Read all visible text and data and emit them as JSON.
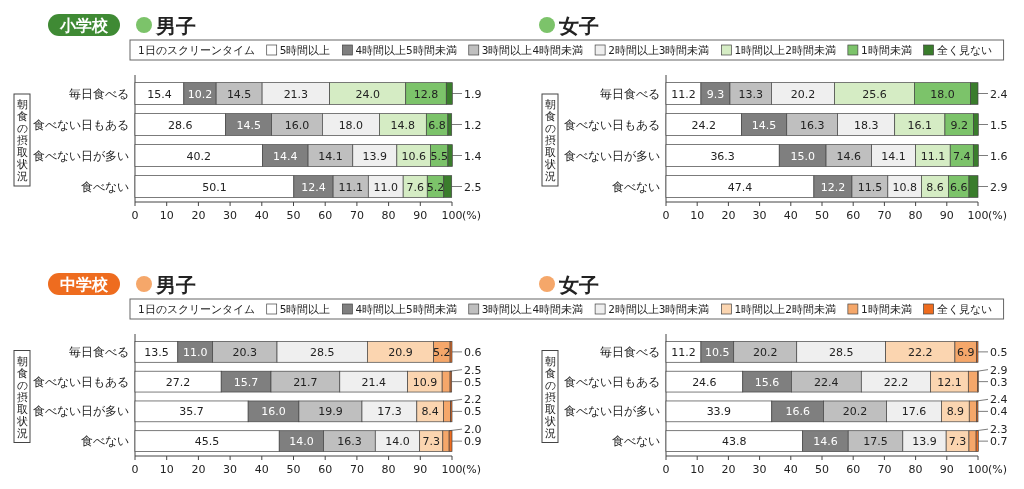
{
  "chart_data": [
    {
      "type": "bar",
      "orientation": "horizontal",
      "stacked": true,
      "subtitle": "小学校",
      "title": "男子",
      "ylabel": "朝食の摂取状況",
      "xlabel": "(%)",
      "legend_title": "1日のスクリーンタイム",
      "legend": "top",
      "grid": false,
      "categories": [
        "毎日食べる",
        "食べない日もある",
        "食べない日が多い",
        "食べない"
      ],
      "xlim": [
        0,
        100
      ],
      "xticks": [
        0,
        10,
        20,
        30,
        40,
        50,
        60,
        70,
        80,
        90,
        100
      ],
      "series": [
        {
          "name": "5時間以上",
          "color": "#ffffff",
          "values": [
            15.4,
            28.6,
            40.2,
            50.1
          ],
          "value_labels": [
            "15.4",
            "28.6",
            "40.2",
            "50.1"
          ]
        },
        {
          "name": "4時間以上5時間未満",
          "color": "#7f7f7f",
          "values": [
            10.2,
            14.5,
            14.4,
            12.4
          ],
          "value_labels": [
            "10.2",
            "14.5",
            "14.4",
            "12.4"
          ]
        },
        {
          "name": "3時間以上4時間未満",
          "color": "#bfbfbf",
          "values": [
            14.5,
            16.0,
            14.1,
            11.1
          ],
          "value_labels": [
            "14.5",
            "16.0",
            "14.1",
            "11.1"
          ]
        },
        {
          "name": "2時間以上3時間未満",
          "color": "#efefef",
          "values": [
            21.3,
            18.0,
            13.9,
            11.0
          ],
          "value_labels": [
            "21.3",
            "18.0",
            "13.9",
            "11.0"
          ]
        },
        {
          "name": "1時間以上2時間未満",
          "color": "#d5ecc4",
          "values": [
            24.0,
            14.8,
            10.6,
            7.6
          ],
          "value_labels": [
            "24.0",
            "14.8",
            "10.6",
            "7.6"
          ]
        },
        {
          "name": "1時間未満",
          "color": "#7cc36a",
          "values": [
            12.8,
            6.8,
            5.5,
            5.2
          ],
          "value_labels": [
            "12.8",
            "6.8",
            "5.5",
            "5.2"
          ]
        },
        {
          "name": "全く見ない",
          "color": "#3a7d2c",
          "values": [
            1.9,
            1.2,
            1.4,
            2.5
          ],
          "value_labels": [
            "1.9",
            "1.2",
            "1.4",
            "2.5"
          ]
        }
      ]
    },
    {
      "type": "bar",
      "orientation": "horizontal",
      "stacked": true,
      "title": "女子",
      "ylabel": "朝食の摂取状況",
      "xlabel": "(%)",
      "grid": false,
      "categories": [
        "毎日食べる",
        "食べない日もある",
        "食べない日が多い",
        "食べない"
      ],
      "xlim": [
        0,
        100
      ],
      "xticks": [
        0,
        10,
        20,
        30,
        40,
        50,
        60,
        70,
        80,
        90,
        100
      ],
      "series": [
        {
          "color": "#ffffff",
          "values": [
            11.2,
            24.2,
            36.3,
            47.4
          ],
          "value_labels": [
            "11.2",
            "24.2",
            "36.3",
            "47.4"
          ]
        },
        {
          "color": "#7f7f7f",
          "values": [
            9.3,
            14.5,
            15.0,
            12.2
          ],
          "value_labels": [
            "9.3",
            "14.5",
            "15.0",
            "12.2"
          ]
        },
        {
          "color": "#bfbfbf",
          "values": [
            13.3,
            16.3,
            14.6,
            11.5
          ],
          "value_labels": [
            "13.3",
            "16.3",
            "14.6",
            "11.5"
          ]
        },
        {
          "color": "#efefef",
          "values": [
            20.2,
            18.3,
            14.1,
            10.8
          ],
          "value_labels": [
            "20.2",
            "18.3",
            "14.1",
            "10.8"
          ]
        },
        {
          "color": "#d5ecc4",
          "values": [
            25.6,
            16.1,
            11.1,
            8.6
          ],
          "value_labels": [
            "25.6",
            "16.1",
            "11.1",
            "8.6"
          ]
        },
        {
          "color": "#7cc36a",
          "values": [
            18.0,
            9.2,
            7.4,
            6.6
          ],
          "value_labels": [
            "18.0",
            "9.2",
            "7.4",
            "6.6"
          ]
        },
        {
          "color": "#3a7d2c",
          "values": [
            2.4,
            1.5,
            1.6,
            2.9
          ],
          "value_labels": [
            "2.4",
            "1.5",
            "1.6",
            "2.9"
          ]
        }
      ]
    },
    {
      "type": "bar",
      "orientation": "horizontal",
      "stacked": true,
      "subtitle": "中学校",
      "title": "男子",
      "ylabel": "朝食の摂取状況",
      "xlabel": "(%)",
      "legend_title": "1日のスクリーンタイム",
      "legend": "top",
      "grid": false,
      "categories": [
        "毎日食べる",
        "食べない日もある",
        "食べない日が多い",
        "食べない"
      ],
      "xlim": [
        0,
        100
      ],
      "xticks": [
        0,
        10,
        20,
        30,
        40,
        50,
        60,
        70,
        80,
        90,
        100
      ],
      "series": [
        {
          "name": "5時間以上",
          "color": "#ffffff",
          "values": [
            13.5,
            27.2,
            35.7,
            45.5
          ],
          "value_labels": [
            "13.5",
            "27.2",
            "35.7",
            "45.5"
          ]
        },
        {
          "name": "4時間以上5時間未満",
          "color": "#7f7f7f",
          "values": [
            11.0,
            15.7,
            16.0,
            14.0
          ],
          "value_labels": [
            "11.0",
            "15.7",
            "16.0",
            "14.0"
          ]
        },
        {
          "name": "3時間以上4時間未満",
          "color": "#bfbfbf",
          "values": [
            20.3,
            21.7,
            19.9,
            16.3
          ],
          "value_labels": [
            "20.3",
            "21.7",
            "19.9",
            "16.3"
          ]
        },
        {
          "name": "2時間以上3時間未満",
          "color": "#efefef",
          "values": [
            28.5,
            21.4,
            17.3,
            14.0
          ],
          "value_labels": [
            "28.5",
            "21.4",
            "17.3",
            "14.0"
          ]
        },
        {
          "name": "1時間以上2時間未満",
          "color": "#fbd5b0",
          "values": [
            20.9,
            10.9,
            8.4,
            7.3
          ],
          "value_labels": [
            "20.9",
            "10.9",
            "8.4",
            "7.3"
          ]
        },
        {
          "name": "1時間未満",
          "color": "#f5a76a",
          "values": [
            5.2,
            2.5,
            2.2,
            2.0
          ],
          "value_labels": [
            "5.2",
            "2.5",
            "2.2",
            "2.0"
          ]
        },
        {
          "name": "全く見ない",
          "color": "#ee6c1f",
          "values": [
            0.6,
            0.5,
            0.5,
            0.9
          ],
          "value_labels": [
            "0.6",
            "0.5",
            "0.5",
            "0.9"
          ]
        }
      ]
    },
    {
      "type": "bar",
      "orientation": "horizontal",
      "stacked": true,
      "title": "女子",
      "ylabel": "朝食の摂取状況",
      "xlabel": "(%)",
      "grid": false,
      "categories": [
        "毎日食べる",
        "食べない日もある",
        "食べない日が多い",
        "食べない"
      ],
      "xlim": [
        0,
        100
      ],
      "xticks": [
        0,
        10,
        20,
        30,
        40,
        50,
        60,
        70,
        80,
        90,
        100
      ],
      "series": [
        {
          "color": "#ffffff",
          "values": [
            11.2,
            24.6,
            33.9,
            43.8
          ],
          "value_labels": [
            "11.2",
            "24.6",
            "33.9",
            "43.8"
          ]
        },
        {
          "color": "#7f7f7f",
          "values": [
            10.5,
            15.6,
            16.6,
            14.6
          ],
          "value_labels": [
            "10.5",
            "15.6",
            "16.6",
            "14.6"
          ]
        },
        {
          "color": "#bfbfbf",
          "values": [
            20.2,
            22.4,
            20.2,
            17.5
          ],
          "value_labels": [
            "20.2",
            "22.4",
            "20.2",
            "17.5"
          ]
        },
        {
          "color": "#efefef",
          "values": [
            28.5,
            22.2,
            17.6,
            13.9
          ],
          "value_labels": [
            "28.5",
            "22.2",
            "17.6",
            "13.9"
          ]
        },
        {
          "color": "#fbd5b0",
          "values": [
            22.2,
            12.1,
            8.9,
            7.3
          ],
          "value_labels": [
            "22.2",
            "12.1",
            "8.9",
            "7.3"
          ]
        },
        {
          "color": "#f5a76a",
          "values": [
            6.9,
            2.9,
            2.4,
            2.3
          ],
          "value_labels": [
            "6.9",
            "2.9",
            "2.4",
            "2.3"
          ]
        },
        {
          "color": "#ee6c1f",
          "values": [
            0.5,
            0.3,
            0.4,
            0.7
          ],
          "value_labels": [
            "0.5",
            "0.3",
            "0.4",
            "0.7"
          ]
        }
      ]
    }
  ]
}
